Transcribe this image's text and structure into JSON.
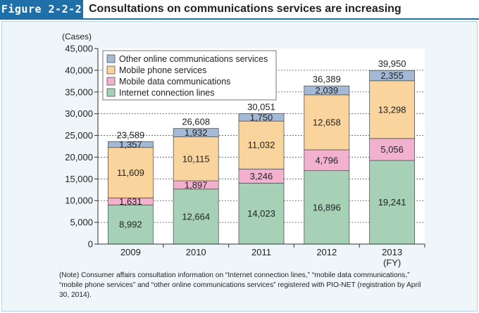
{
  "figure": {
    "number": "Figure 2-2-2",
    "title": "Consultations on communications services are increasing"
  },
  "note": "(Note) Consumer affairs consultation information on “Internet connection lines,” “mobile data communications,” “mobile phone services” and “other online communications services” registered with PIO-NET (registration by April 30, 2014).",
  "chart_data": {
    "type": "bar",
    "stacked": true,
    "ylabel": "(Cases)",
    "xlabel_suffix": "(FY)",
    "ylim": [
      0,
      45000
    ],
    "yticks": [
      0,
      5000,
      10000,
      15000,
      20000,
      25000,
      30000,
      35000,
      40000,
      45000
    ],
    "ytick_labels": [
      "0",
      "5,000",
      "10,000",
      "15,000",
      "20,000",
      "25,000",
      "30,000",
      "35,000",
      "40,000",
      "45,000"
    ],
    "grid": "horizontal dashed",
    "legend_position": "top-left",
    "categories": [
      "2009",
      "2010",
      "2011",
      "2012",
      "2013"
    ],
    "totals": [
      23589,
      26608,
      30051,
      36389,
      39950
    ],
    "total_labels": [
      "23,589",
      "26,608",
      "30,051",
      "36,389",
      "39,950"
    ],
    "series": [
      {
        "name": "Internet connection lines",
        "color": "#a6d1b7",
        "values": [
          8992,
          12664,
          14023,
          16896,
          19241
        ],
        "labels": [
          "8,992",
          "12,664",
          "14,023",
          "16,896",
          "19,241"
        ]
      },
      {
        "name": "Mobile data communications",
        "color": "#f2b2cf",
        "values": [
          1631,
          1897,
          3246,
          4796,
          5056
        ],
        "labels": [
          "1,631",
          "1,897",
          "3,246",
          "4,796",
          "5,056"
        ]
      },
      {
        "name": "Mobile phone services",
        "color": "#f9d49c",
        "values": [
          11609,
          10115,
          11032,
          12658,
          13298
        ],
        "labels": [
          "11,609",
          "10,115",
          "11,032",
          "12,658",
          "13,298"
        ]
      },
      {
        "name": "Other online communications services",
        "color": "#a4b9d6",
        "values": [
          1357,
          1932,
          1750,
          2039,
          2355
        ],
        "labels": [
          "1,357",
          "1,932",
          "1,750",
          "2,039",
          "2,355"
        ]
      }
    ]
  }
}
